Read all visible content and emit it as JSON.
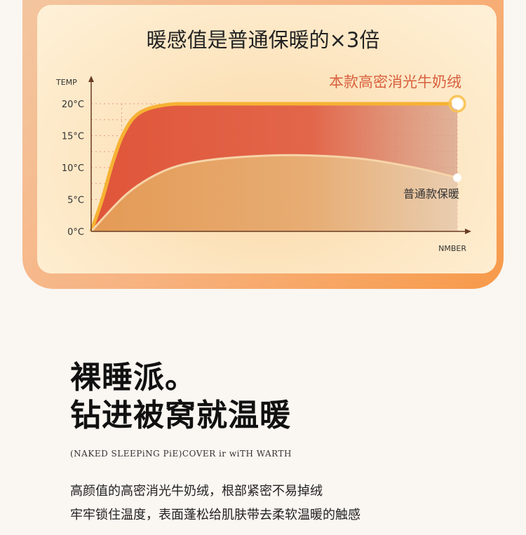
{
  "panel": {
    "title": "暖感值是普通保暖的×3倍"
  },
  "chart_data": {
    "type": "area",
    "ylabel": "TEMP",
    "xlabel": "NMBER",
    "yticks": [
      "0°C",
      "5°C",
      "10°C",
      "15°C",
      "20°C"
    ],
    "ytick_values": [
      0,
      5,
      10,
      15,
      20
    ],
    "ylim": [
      0,
      24
    ],
    "xlim": [
      0,
      10
    ],
    "grid": true,
    "series": [
      {
        "name": "本款高密消光牛奶绒",
        "color": "#e0553a",
        "line_color": "#f6b233",
        "points": [
          [
            0,
            0
          ],
          [
            0.3,
            5
          ],
          [
            0.6,
            11
          ],
          [
            0.9,
            15.5
          ],
          [
            1.3,
            18.5
          ],
          [
            2,
            19.8
          ],
          [
            3,
            20
          ],
          [
            6,
            20
          ],
          [
            10,
            20
          ]
        ]
      },
      {
        "name": "普通款保暖",
        "color": "#e7a25d",
        "line_color": "#f6d4a8",
        "points": [
          [
            0,
            0
          ],
          [
            1,
            6
          ],
          [
            2,
            9.5
          ],
          [
            3,
            11
          ],
          [
            4.5,
            11.8
          ],
          [
            6,
            11.9
          ],
          [
            7.5,
            11.3
          ],
          [
            9,
            9.8
          ],
          [
            10,
            8.4
          ]
        ]
      }
    ]
  },
  "headline": {
    "line1": "裸睡派。",
    "line2": "钻进被窝就温暖"
  },
  "subtitle": "(NAKED SLEEPiNG PiE)COVER ir wiTH WARTH",
  "body": {
    "line1": "高颜值的高密消光牛奶绒，根部紧密不易掉绒",
    "line2": "牢牢锁住温度，表面蓬松给肌肤带去柔软温暖的触感"
  }
}
